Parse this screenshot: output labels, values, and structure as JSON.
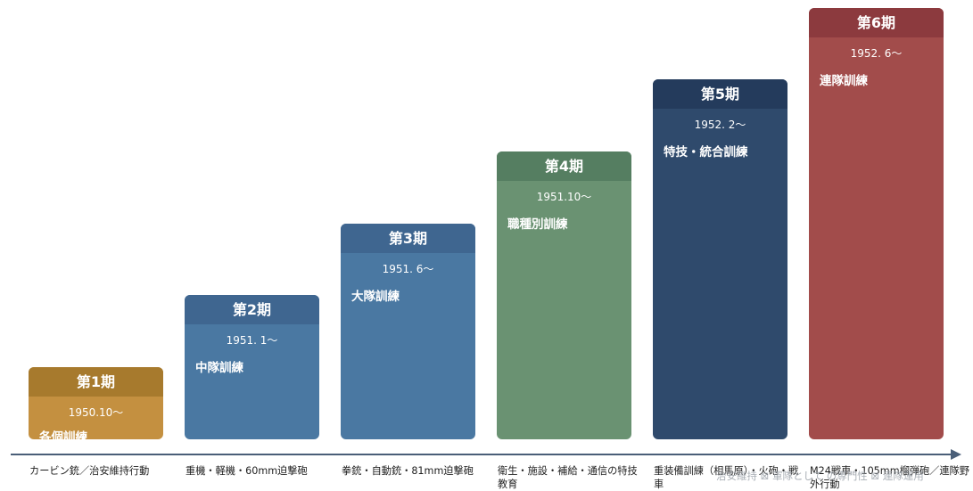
{
  "phases": [
    {
      "name": "第1期",
      "date": "1950.10〜",
      "training": "各個訓練",
      "head_color": "#a77a2d",
      "body_color": "#c49040"
    },
    {
      "name": "第2期",
      "date": "1951. 1〜",
      "training": "中隊訓練",
      "head_color": "#3f6690",
      "body_color": "#4a78a2"
    },
    {
      "name": "第3期",
      "date": "1951. 6〜",
      "training": "大隊訓練",
      "head_color": "#3f6690",
      "body_color": "#4a78a2"
    },
    {
      "name": "第4期",
      "date": "1951.10〜",
      "training": "職種別訓練",
      "head_color": "#557e61",
      "body_color": "#6a9272"
    },
    {
      "name": "第5期",
      "date": "1952. 2〜",
      "training": "特技・統合訓練",
      "head_color": "#243b5c",
      "body_color": "#2f4a6c"
    },
    {
      "name": "第6期",
      "date": "1952. 6〜",
      "training": "連隊訓練",
      "head_color": "#8c3a3e",
      "body_color": "#a24c4b"
    }
  ],
  "weapons": [
    "カービン銃／治安維持行動",
    "重機・軽機・60mm迫撃砲",
    "拳銃・自動銃・81mm迫撃砲",
    "衛生・施設・補給・通信の特技教育",
    "重装備訓練（相馬原）・火砲・戦車",
    "M24戦車・105mm榴弾砲／連隊野外行動"
  ],
  "overlay_text": "治安維持 ⊠ 軍隊として の専門性 ⊠ 連隊運用",
  "axis_color": "#4a5e78"
}
